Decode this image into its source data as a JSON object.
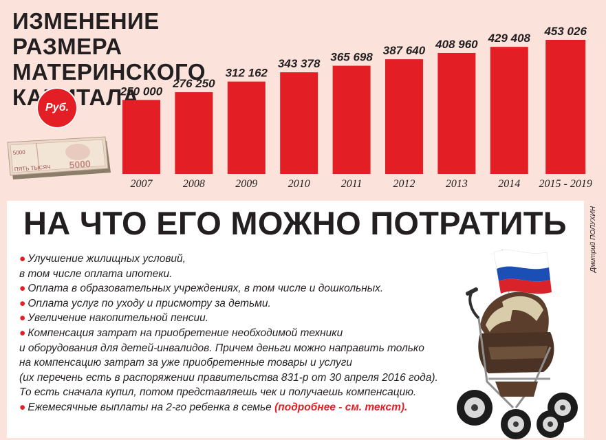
{
  "title_lines": [
    "ИЗМЕНЕНИЕ РАЗМЕРА",
    "МАТЕРИНСКОГО",
    "КАПИТАЛА"
  ],
  "currency_badge": "Руб.",
  "banknote_text": {
    "denomination": "5000",
    "words": "ПЯТЬ ТЫСЯЧ"
  },
  "colors": {
    "bar": "#e31e24",
    "background": "#fbe3dc",
    "panel": "#ffffff",
    "text": "#231f20"
  },
  "chart_data": {
    "type": "bar",
    "title": "ИЗМЕНЕНИЕ РАЗМЕРА МАТЕРИНСКОГО КАПИТАЛА",
    "categories": [
      "2007",
      "2008",
      "2009",
      "2010",
      "2011",
      "2012",
      "2013",
      "2014",
      "2015 - 2019"
    ],
    "values": [
      250000,
      276250,
      312162,
      343378,
      365698,
      387640,
      408960,
      429408,
      453026
    ],
    "value_labels": [
      "250 000",
      "276 250",
      "312 162",
      "343 378",
      "365 698",
      "387 640",
      "408 960",
      "429 408",
      "453 026"
    ],
    "unit": "Руб.",
    "ylim": [
      0,
      453026
    ],
    "grid": false,
    "legend": "none"
  },
  "section_heading": "НА ЧТО ЕГО МОЖНО ПОТРАТИТЬ",
  "uses": [
    {
      "lines": [
        "Улучшение жилищных условий,",
        "в том числе оплата ипотеки."
      ]
    },
    {
      "lines": [
        "Оплата в образовательных учреждениях, в том числе и дошкольных."
      ]
    },
    {
      "lines": [
        "Оплата услуг по уходу и присмотру за детьми."
      ]
    },
    {
      "lines": [
        "Увеличение накопительной пенсии."
      ]
    },
    {
      "lines": [
        "Компенсация затрат на приобретение необходимой техники",
        "и оборудования для детей-инвалидов. Причем деньги можно направить только",
        "на компенсацию затрат за уже приобретенные товары и услуги",
        "(их перечень есть в распоряжении правительства 831-р от 30 апреля 2016 года).",
        "То есть сначала купил, потом представляешь чек и получаешь компенсацию."
      ]
    },
    {
      "lines": [
        "Ежемесячные выплаты на 2-го ребенка в семье"
      ],
      "more": "(подробнее - см. текст)."
    }
  ],
  "credit": "Дмитрий ПОЛУХИН"
}
